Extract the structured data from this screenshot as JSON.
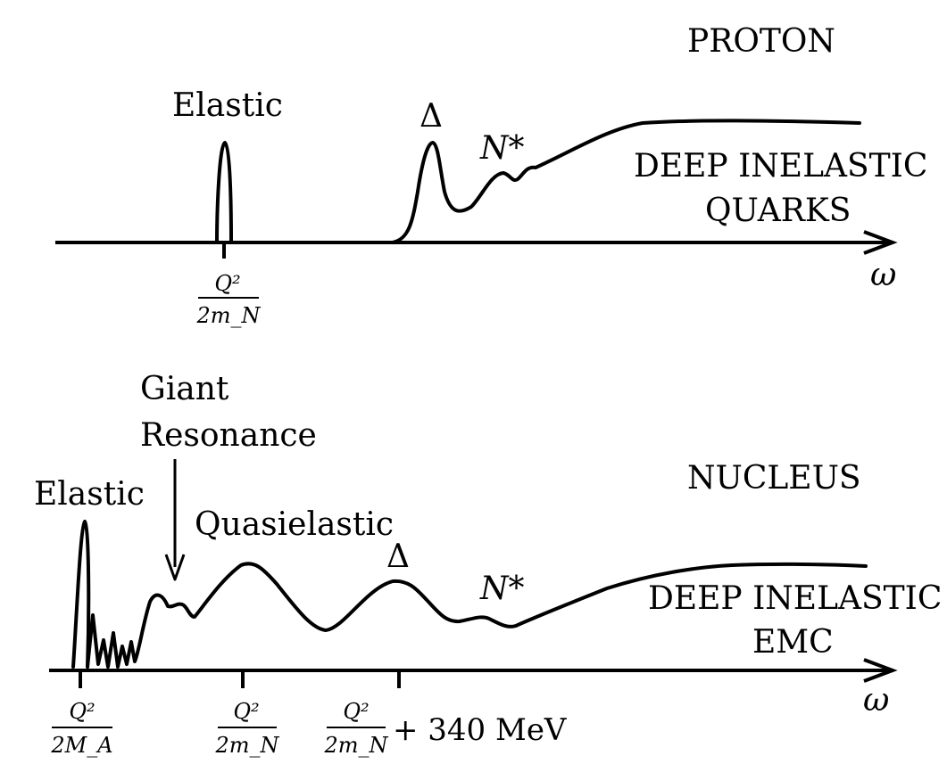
{
  "proton": {
    "title": "PROTON",
    "elastic_label": "Elastic",
    "delta_label": "Δ",
    "nstar_label": "N*",
    "deep_inelastic_line1": "DEEP INELASTIC",
    "deep_inelastic_line2": "QUARKS",
    "axis_label": "ω",
    "tick_numerator": "Q²",
    "tick_denominator": "2m_N"
  },
  "nucleus": {
    "title": "NUCLEUS",
    "elastic_label": "Elastic",
    "giant_line1": "Giant",
    "giant_line2": "Resonance",
    "quasielastic_label": "Quasielastic",
    "delta_label": "Δ",
    "nstar_label": "N*",
    "deep_inelastic_line1": "DEEP INELASTIC",
    "deep_inelastic_line2": "EMC",
    "axis_label": "ω",
    "tick1_numerator": "Q²",
    "tick1_denominator": "2M_A",
    "tick2_numerator": "Q²",
    "tick2_denominator": "2m_N",
    "tick3_numerator": "Q²",
    "tick3_denominator": "2m_N",
    "tick3_suffix": "+ 340 MeV"
  }
}
